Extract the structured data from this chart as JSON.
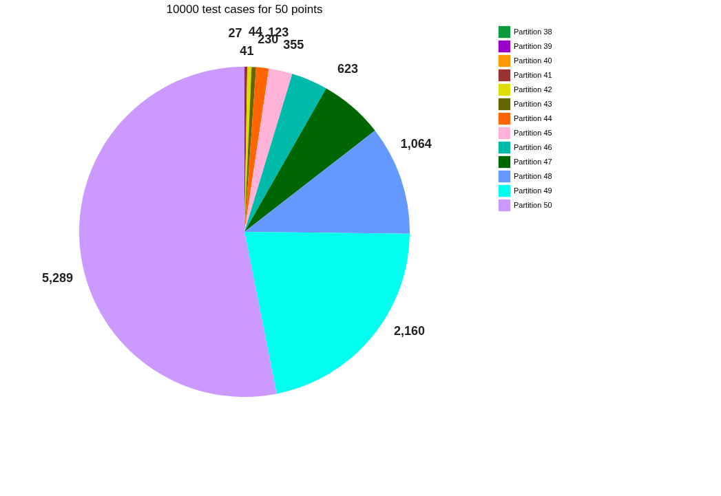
{
  "chart_data": {
    "type": "pie",
    "title": "10000 test cases for 50 points",
    "categories": [
      "Partition 38",
      "Partition 39",
      "Partition 40",
      "Partition 41",
      "Partition 42",
      "Partition 43",
      "Partition 44",
      "Partition 45",
      "Partition 46",
      "Partition 47",
      "Partition 48",
      "Partition 49",
      "Partition 50"
    ],
    "values": [
      null,
      null,
      null,
      27,
      41,
      44,
      123,
      230,
      355,
      623,
      1064,
      2160,
      5289
    ],
    "value_labels": [
      null,
      null,
      null,
      "27",
      "41",
      "44",
      "123",
      "230",
      "355",
      "623",
      "1,064",
      "2,160",
      "5,289"
    ],
    "colors": [
      "#0a9a3a",
      "#9900cc",
      "#ff9900",
      "#993333",
      "#dddd00",
      "#666600",
      "#ff6600",
      "#ffb3d9",
      "#00bbaa",
      "#006600",
      "#6699ff",
      "#00ffee",
      "#cc99ff"
    ],
    "legend": "right"
  }
}
